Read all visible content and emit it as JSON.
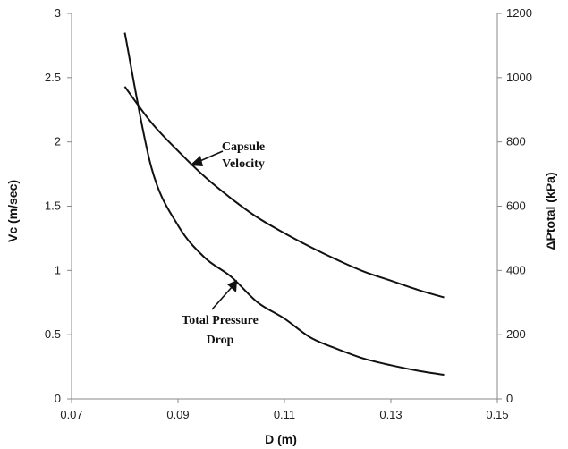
{
  "chart_data": {
    "type": "line",
    "title": "",
    "xlabel": "D (m)",
    "ylabel": "Vc (m/sec)",
    "y2label": "ΔPtotal (kPa)",
    "xlim": [
      0.07,
      0.15
    ],
    "ylim": [
      0,
      3
    ],
    "y2lim": [
      0,
      1200
    ],
    "x_ticks": [
      "0.07",
      "0.09",
      "0.11",
      "0.13",
      "0.15"
    ],
    "y_ticks": [
      "0",
      "0.5",
      "1",
      "1.5",
      "2",
      "2.5",
      "3"
    ],
    "y2_ticks": [
      "0",
      "200",
      "400",
      "600",
      "800",
      "1000",
      "1200"
    ],
    "grid": false,
    "legend": "none",
    "series": [
      {
        "axis": "left",
        "x": [
          0.08,
          0.085,
          0.09,
          0.095,
          0.1,
          0.105,
          0.11,
          0.115,
          0.12,
          0.125,
          0.13,
          0.135,
          0.14
        ],
        "values": [
          2.43,
          2.15,
          1.93,
          1.73,
          1.56,
          1.41,
          1.29,
          1.18,
          1.08,
          0.99,
          0.92,
          0.85,
          0.79
        ]
      },
      {
        "axis": "right",
        "x": [
          0.08,
          0.085,
          0.09,
          0.095,
          0.1,
          0.105,
          0.11,
          0.115,
          0.12,
          0.125,
          0.13,
          0.135,
          0.14
        ],
        "values": [
          1140,
          720,
          540,
          440,
          380,
          300,
          250,
          190,
          155,
          125,
          105,
          88,
          75
        ]
      }
    ],
    "annotations": [
      {
        "lines": [
          "Capsule",
          "Velocity"
        ]
      },
      {
        "lines": [
          "Total Pressure",
          "Drop"
        ]
      }
    ]
  }
}
